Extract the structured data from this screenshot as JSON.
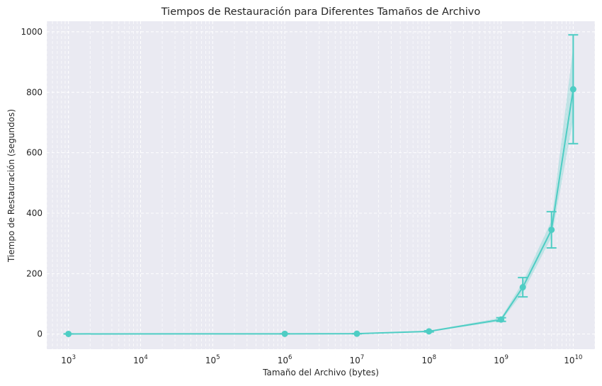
{
  "chart_data": {
    "type": "line",
    "title": "Tiempos de Restauración para Diferentes Tamaños de Archivo",
    "xlabel": "Tamaño del Archivo (bytes)",
    "ylabel": "Tiempo de Restauración (segundos)",
    "xscale": "log",
    "xlim": [
      500,
      20000000000
    ],
    "ylim": [
      -50,
      1035
    ],
    "grid": true,
    "x_ticks": [
      {
        "base": "10",
        "exp": "3",
        "value": 1000
      },
      {
        "base": "10",
        "exp": "4",
        "value": 10000
      },
      {
        "base": "10",
        "exp": "5",
        "value": 100000
      },
      {
        "base": "10",
        "exp": "6",
        "value": 1000000
      },
      {
        "base": "10",
        "exp": "7",
        "value": 10000000
      },
      {
        "base": "10",
        "exp": "8",
        "value": 100000000
      },
      {
        "base": "10",
        "exp": "9",
        "value": 1000000000
      },
      {
        "base": "10",
        "exp": "10",
        "value": 10000000000
      }
    ],
    "y_ticks": [
      {
        "label": "0",
        "value": 0
      },
      {
        "label": "200",
        "value": 200
      },
      {
        "label": "400",
        "value": 400
      },
      {
        "label": "600",
        "value": 600
      },
      {
        "label": "800",
        "value": 800
      },
      {
        "label": "1000",
        "value": 1000
      }
    ],
    "series": [
      {
        "color": "#4ecdc4",
        "marker": "circle",
        "x": [
          1000,
          1000000,
          10000000,
          100000000,
          1000000000,
          2000000000,
          5000000000,
          10000000000
        ],
        "y": [
          0.5,
          0.8,
          1.2,
          9,
          48,
          155,
          345,
          810
        ],
        "yerr": [
          0.2,
          0.3,
          0.4,
          2,
          6,
          32,
          60,
          180
        ],
        "band_lower": [
          0.4,
          0.6,
          1.0,
          7,
          43,
          137,
          320,
          710
        ],
        "band_upper": [
          0.7,
          1.0,
          1.5,
          11,
          54,
          172,
          375,
          950
        ]
      }
    ]
  }
}
